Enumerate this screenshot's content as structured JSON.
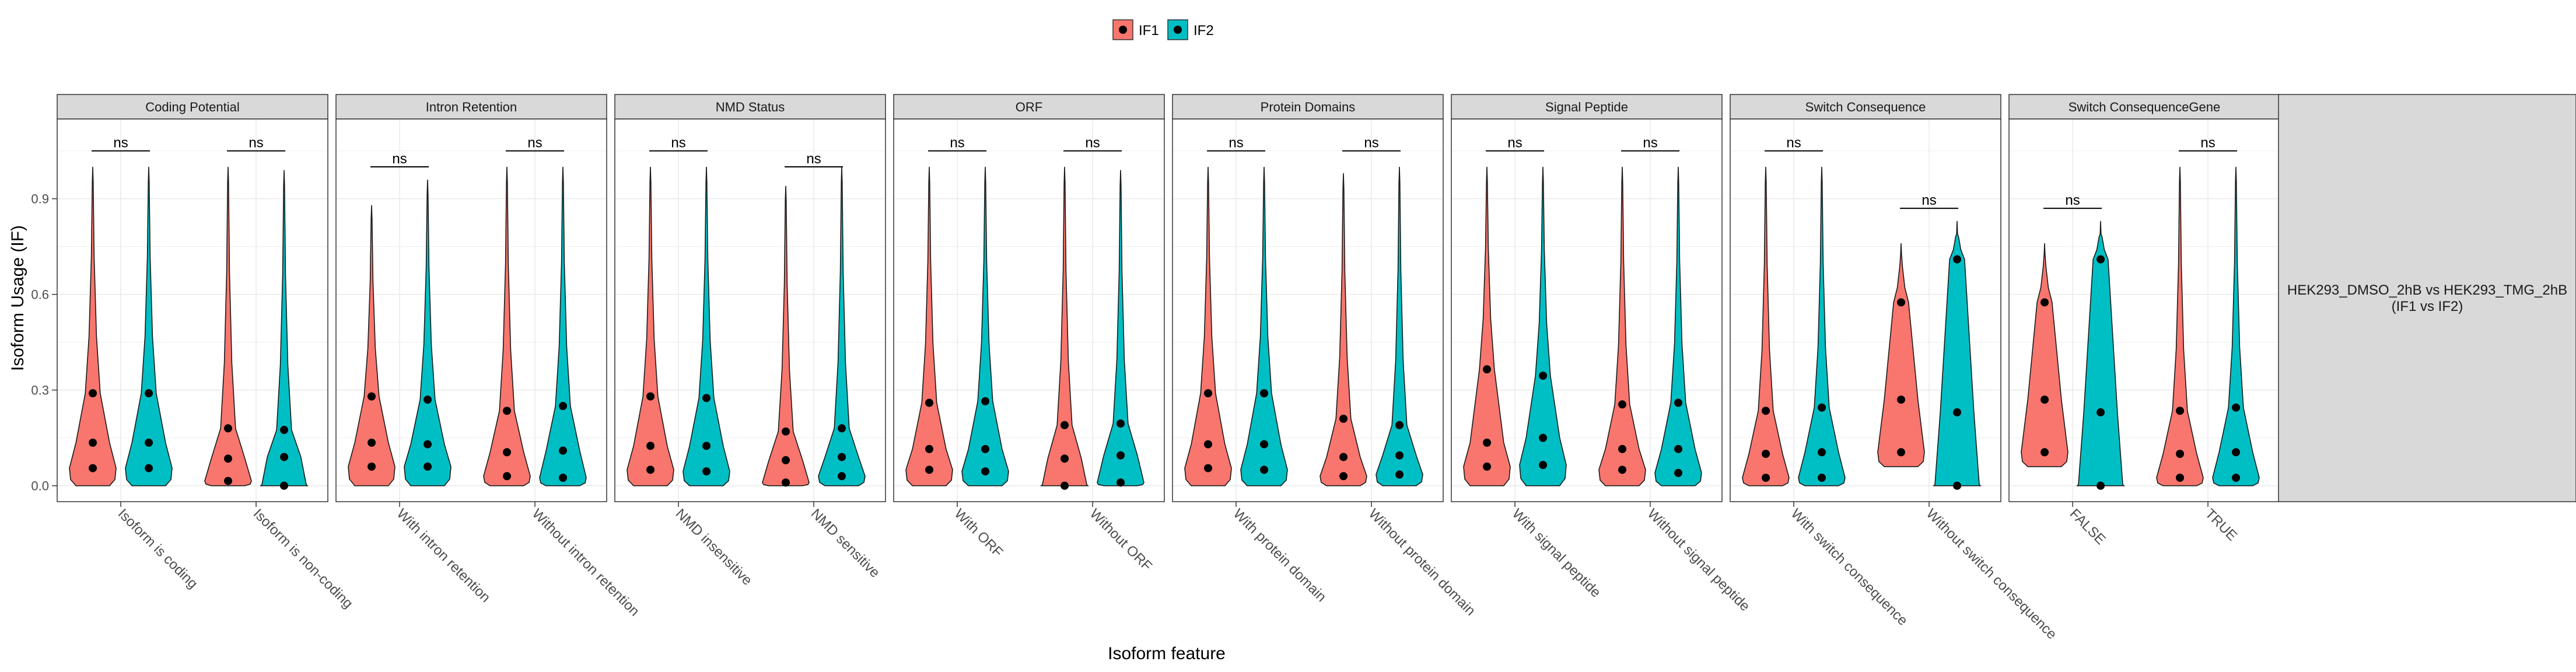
{
  "chart_data": {
    "type": "violin",
    "x_title": "Isoform feature",
    "y_title": "Isoform Usage (IF)",
    "y_ticks": [
      "0.0",
      "0.3",
      "0.6",
      "0.9"
    ],
    "ylim": [
      -0.05,
      1.15
    ],
    "row_strip": "HEK293_DMSO_2hB vs HEK293_TMG_2hB\n(IF1 vs IF2)",
    "legend": [
      {
        "name": "IF1",
        "color": "#F8766D"
      },
      {
        "name": "IF2",
        "color": "#00BFC4"
      }
    ],
    "panels": [
      {
        "title": "Coding Potential",
        "categories": [
          {
            "label": "Isoform is coding",
            "sig": "ns",
            "sig_y": 1.05,
            "if1": {
              "min": 0.0,
              "max": 1.0,
              "q": [
                0.055,
                0.135,
                0.29
              ]
            },
            "if2": {
              "min": 0.0,
              "max": 1.0,
              "q": [
                0.055,
                0.135,
                0.29
              ]
            }
          },
          {
            "label": "Isoform is non-coding",
            "sig": "ns",
            "sig_y": 1.05,
            "if1": {
              "min": 0.0,
              "max": 1.0,
              "q": [
                0.015,
                0.085,
                0.18
              ]
            },
            "if2": {
              "min": 0.0,
              "max": 0.99,
              "q": [
                0.0,
                0.09,
                0.175
              ]
            }
          }
        ]
      },
      {
        "title": "Intron Retention",
        "categories": [
          {
            "label": "With intron retention",
            "sig": "ns",
            "sig_y": 1.0,
            "if1": {
              "min": 0.0,
              "max": 0.88,
              "q": [
                0.06,
                0.135,
                0.28
              ]
            },
            "if2": {
              "min": 0.0,
              "max": 0.96,
              "q": [
                0.06,
                0.13,
                0.27
              ]
            }
          },
          {
            "label": "Without intron retention",
            "sig": "ns",
            "sig_y": 1.05,
            "if1": {
              "min": 0.0,
              "max": 1.0,
              "q": [
                0.03,
                0.105,
                0.235
              ]
            },
            "if2": {
              "min": 0.0,
              "max": 1.0,
              "q": [
                0.025,
                0.11,
                0.25
              ]
            }
          }
        ]
      },
      {
        "title": "NMD Status",
        "categories": [
          {
            "label": "NMD insensitive",
            "sig": "ns",
            "sig_y": 1.05,
            "if1": {
              "min": 0.0,
              "max": 1.0,
              "q": [
                0.05,
                0.125,
                0.28
              ]
            },
            "if2": {
              "min": 0.0,
              "max": 1.0,
              "q": [
                0.045,
                0.125,
                0.275
              ]
            }
          },
          {
            "label": "NMD sensitive",
            "sig": "ns",
            "sig_y": 1.0,
            "if1": {
              "min": 0.0,
              "max": 0.94,
              "q": [
                0.01,
                0.08,
                0.17
              ]
            },
            "if2": {
              "min": 0.0,
              "max": 1.0,
              "q": [
                0.03,
                0.09,
                0.18
              ]
            }
          }
        ]
      },
      {
        "title": "ORF",
        "categories": [
          {
            "label": "With ORF",
            "sig": "ns",
            "sig_y": 1.05,
            "if1": {
              "min": 0.0,
              "max": 1.0,
              "q": [
                0.05,
                0.115,
                0.26
              ]
            },
            "if2": {
              "min": 0.0,
              "max": 1.0,
              "q": [
                0.045,
                0.115,
                0.265
              ]
            }
          },
          {
            "label": "Without ORF",
            "sig": "ns",
            "sig_y": 1.05,
            "if1": {
              "min": 0.0,
              "max": 1.0,
              "q": [
                0.0,
                0.085,
                0.19
              ]
            },
            "if2": {
              "min": 0.0,
              "max": 0.99,
              "q": [
                0.01,
                0.095,
                0.195
              ]
            }
          }
        ]
      },
      {
        "title": "Protein Domains",
        "categories": [
          {
            "label": "With protein domain",
            "sig": "ns",
            "sig_y": 1.05,
            "if1": {
              "min": 0.0,
              "max": 1.0,
              "q": [
                0.055,
                0.13,
                0.29
              ]
            },
            "if2": {
              "min": 0.0,
              "max": 1.0,
              "q": [
                0.05,
                0.13,
                0.29
              ]
            }
          },
          {
            "label": "Without protein domain",
            "sig": "ns",
            "sig_y": 1.05,
            "if1": {
              "min": 0.0,
              "max": 0.98,
              "q": [
                0.03,
                0.09,
                0.21
              ]
            },
            "if2": {
              "min": 0.0,
              "max": 1.0,
              "q": [
                0.035,
                0.095,
                0.19
              ]
            }
          }
        ]
      },
      {
        "title": "Signal Peptide",
        "categories": [
          {
            "label": "With signal peptide",
            "sig": "ns",
            "sig_y": 1.05,
            "if1": {
              "min": 0.0,
              "max": 1.0,
              "q": [
                0.06,
                0.135,
                0.365
              ]
            },
            "if2": {
              "min": 0.0,
              "max": 1.0,
              "q": [
                0.065,
                0.15,
                0.345
              ]
            }
          },
          {
            "label": "Without signal peptide",
            "sig": "ns",
            "sig_y": 1.05,
            "if1": {
              "min": 0.0,
              "max": 1.0,
              "q": [
                0.05,
                0.115,
                0.255
              ]
            },
            "if2": {
              "min": 0.0,
              "max": 1.0,
              "q": [
                0.04,
                0.115,
                0.26
              ]
            }
          }
        ]
      },
      {
        "title": "Switch Consequence",
        "categories": [
          {
            "label": "With switch consequence",
            "sig": "ns",
            "sig_y": 1.05,
            "if1": {
              "min": 0.0,
              "max": 1.0,
              "q": [
                0.025,
                0.1,
                0.235
              ]
            },
            "if2": {
              "min": 0.0,
              "max": 1.0,
              "q": [
                0.025,
                0.105,
                0.245
              ]
            }
          },
          {
            "label": "Without switch consequence",
            "sig": "ns",
            "sig_y": 0.87,
            "if1": {
              "min": 0.06,
              "max": 0.76,
              "q": [
                0.105,
                0.27,
                0.575
              ]
            },
            "if2": {
              "min": 0.0,
              "max": 0.83,
              "q": [
                0.0,
                0.23,
                0.71
              ]
            }
          }
        ]
      },
      {
        "title": "Switch ConsequenceGene",
        "categories": [
          {
            "label": "FALSE",
            "sig": "ns",
            "sig_y": 0.87,
            "if1": {
              "min": 0.06,
              "max": 0.76,
              "q": [
                0.105,
                0.27,
                0.575
              ]
            },
            "if2": {
              "min": 0.0,
              "max": 0.83,
              "q": [
                0.0,
                0.23,
                0.71
              ]
            }
          },
          {
            "label": "TRUE",
            "sig": "ns",
            "sig_y": 1.05,
            "if1": {
              "min": 0.0,
              "max": 1.0,
              "q": [
                0.025,
                0.1,
                0.235
              ]
            },
            "if2": {
              "min": 0.0,
              "max": 1.0,
              "q": [
                0.025,
                0.105,
                0.245
              ]
            }
          }
        ]
      }
    ]
  }
}
